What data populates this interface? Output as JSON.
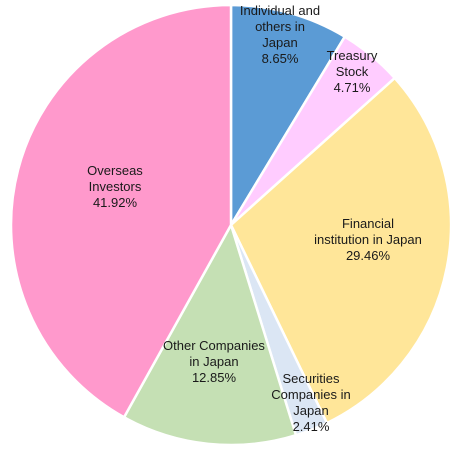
{
  "chart_data": {
    "type": "pie",
    "start_angle_deg": 0,
    "direction": "clockwise",
    "slices": [
      {
        "name": "Individual and others in Japan",
        "value": 8.65,
        "label_lines": [
          "Individual and",
          "others in",
          "Japan",
          "8.65%"
        ],
        "color": "#5b9bd5"
      },
      {
        "name": "Treasury Stock",
        "value": 4.71,
        "label_lines": [
          "Treasury",
          "Stock",
          "4.71%"
        ],
        "color": "#ffccff"
      },
      {
        "name": "Financial institution in Japan",
        "value": 29.46,
        "label_lines": [
          "Financial",
          "institution in Japan",
          "29.46%"
        ],
        "color": "#ffe699"
      },
      {
        "name": "Securities Companies in Japan",
        "value": 2.41,
        "label_lines": [
          "Securities",
          "Companies in",
          "Japan",
          "2.41%"
        ],
        "color": "#dbe6f4"
      },
      {
        "name": "Other Companies in Japan",
        "value": 12.85,
        "label_lines": [
          "Other Companies",
          "in Japan",
          "12.85%"
        ],
        "color": "#c5e0b4"
      },
      {
        "name": "Overseas Investors",
        "value": 41.92,
        "label_lines": [
          "Overseas",
          "Investors",
          "41.92%"
        ],
        "color": "#ff99cc"
      }
    ]
  }
}
